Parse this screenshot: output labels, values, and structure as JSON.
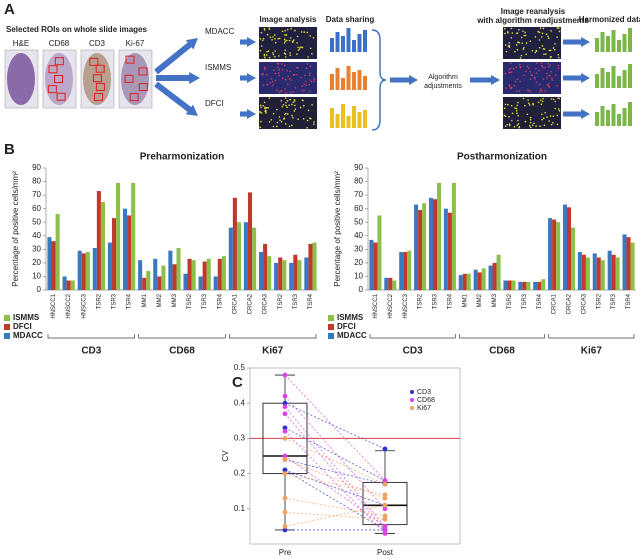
{
  "panel_a": {
    "label": "A",
    "roi_title": "Selected ROIs on whole slide images",
    "stains": [
      "H&E",
      "CD68",
      "CD3",
      "Ki-67"
    ],
    "sites": [
      "MDACC",
      "ISMMS",
      "DFCI"
    ],
    "image_analysis": "Image analysis",
    "data_sharing": "Data sharing",
    "algorithm_lines": [
      "Algorithm",
      "adjustments"
    ],
    "reanalysis_lines": [
      "Image reanalysis",
      "with algorithm readjustments"
    ],
    "harmonized": "Harmonized data"
  },
  "panel_b_label": "B",
  "panel_c_label": "C",
  "chart_data": [
    {
      "type": "bar",
      "title": "Preharmonization",
      "y_label": "Percentage of positive cells/mm²",
      "groups": [
        {
          "name": "CD3",
          "categories": [
            "HNSCC1",
            "HNSCC2",
            "HNSCC3",
            "TSR2",
            "TSR3",
            "TSR4"
          ]
        },
        {
          "name": "CD68",
          "categories": [
            "MM1",
            "MM2",
            "MM3",
            "TSR2",
            "TSR3",
            "TSR4"
          ]
        },
        {
          "name": "Ki67",
          "categories": [
            "CRCA1",
            "CRCA2",
            "CRCA3",
            "TSR2",
            "TSR3",
            "TSR4"
          ]
        }
      ],
      "series": [
        {
          "name": "MDACC",
          "color": "#3a78c0",
          "values": [
            39,
            10,
            29,
            31,
            35,
            60,
            22,
            23,
            29,
            12,
            10,
            10,
            46,
            50,
            28,
            20,
            20,
            24
          ]
        },
        {
          "name": "DFCI",
          "color": "#c0392b",
          "values": [
            36,
            7,
            27,
            73,
            53,
            55,
            9,
            10,
            19,
            23,
            21,
            23,
            68,
            72,
            34,
            24,
            26,
            34
          ]
        },
        {
          "name": "ISMMS",
          "color": "#8dc04a",
          "values": [
            56,
            7,
            28,
            65,
            79,
            79,
            14,
            18,
            31,
            22,
            23,
            25,
            50,
            46,
            25,
            22,
            22,
            35
          ]
        }
      ],
      "ylim": [
        0,
        90
      ],
      "yticks": [
        0,
        10,
        20,
        30,
        40,
        50,
        60,
        70,
        80,
        90
      ]
    },
    {
      "type": "bar",
      "title": "Postharmonization",
      "y_label": "Percentage of positive cells/mm²",
      "groups": [
        {
          "name": "CD3",
          "categories": [
            "HNSCC1",
            "HNSCC2",
            "HNSCC3",
            "TSR2",
            "TSR3",
            "TSR4"
          ]
        },
        {
          "name": "CD68",
          "categories": [
            "MM1",
            "MM2",
            "MM3",
            "TSR2",
            "TSR3",
            "TSR4"
          ]
        },
        {
          "name": "Ki67",
          "categories": [
            "CRCA1",
            "CRCA2",
            "CRCA3",
            "TSR2",
            "TSR3",
            "TSR4"
          ]
        }
      ],
      "series": [
        {
          "name": "MDACC",
          "color": "#3a78c0",
          "values": [
            37,
            9,
            28,
            63,
            68,
            60,
            11,
            15,
            18,
            7,
            6,
            6,
            53,
            63,
            28,
            27,
            29,
            41
          ]
        },
        {
          "name": "DFCI",
          "color": "#c0392b",
          "values": [
            35,
            9,
            28,
            59,
            67,
            57,
            12,
            13,
            20,
            7,
            6,
            6,
            52,
            61,
            26,
            24,
            26,
            39
          ]
        },
        {
          "name": "ISMMS",
          "color": "#8dc04a",
          "values": [
            55,
            7,
            29,
            64,
            79,
            79,
            12,
            16,
            26,
            7,
            6,
            8,
            50,
            46,
            24,
            22,
            24,
            35
          ]
        }
      ],
      "ylim": [
        0,
        90
      ],
      "yticks": [
        0,
        10,
        20,
        30,
        40,
        50,
        60,
        70,
        80,
        90
      ]
    },
    {
      "type": "box",
      "y_label": "CV",
      "categories": [
        "Pre",
        "Post"
      ],
      "ylim": [
        0,
        0.5
      ],
      "yticks": [
        0.1,
        0.2,
        0.3,
        0.4,
        0.5
      ],
      "boxes": [
        {
          "whislo": 0.04,
          "q1": 0.2,
          "med": 0.25,
          "q3": 0.4,
          "whishi": 0.48
        },
        {
          "whislo": 0.03,
          "q1": 0.055,
          "med": 0.11,
          "q3": 0.175,
          "whishi": 0.265
        }
      ],
      "reference_line": 0.3,
      "reference_color": "#d04040",
      "series": [
        {
          "name": "CD3",
          "color": "#3030c8",
          "values": [
            [
              0.4,
              0.27
            ],
            [
              0.24,
              0.17
            ],
            [
              0.21,
              0.11
            ],
            [
              0.21,
              0.04
            ],
            [
              0.04,
              0.04
            ],
            [
              0.33,
              0.18
            ]
          ]
        },
        {
          "name": "CD68",
          "color": "#e040e8",
          "values": [
            [
              0.48,
              0.18
            ],
            [
              0.42,
              0.1
            ],
            [
              0.39,
              0.05
            ],
            [
              0.37,
              0.04
            ],
            [
              0.32,
              0.03
            ],
            [
              0.25,
              0.05
            ]
          ]
        },
        {
          "name": "Ki67",
          "color": "#f0a060",
          "values": [
            [
              0.3,
              0.17
            ],
            [
              0.24,
              0.13
            ],
            [
              0.2,
              0.14
            ],
            [
              0.13,
              0.08
            ],
            [
              0.09,
              0.07
            ],
            [
              0.05,
              0.11
            ]
          ]
        }
      ]
    }
  ]
}
